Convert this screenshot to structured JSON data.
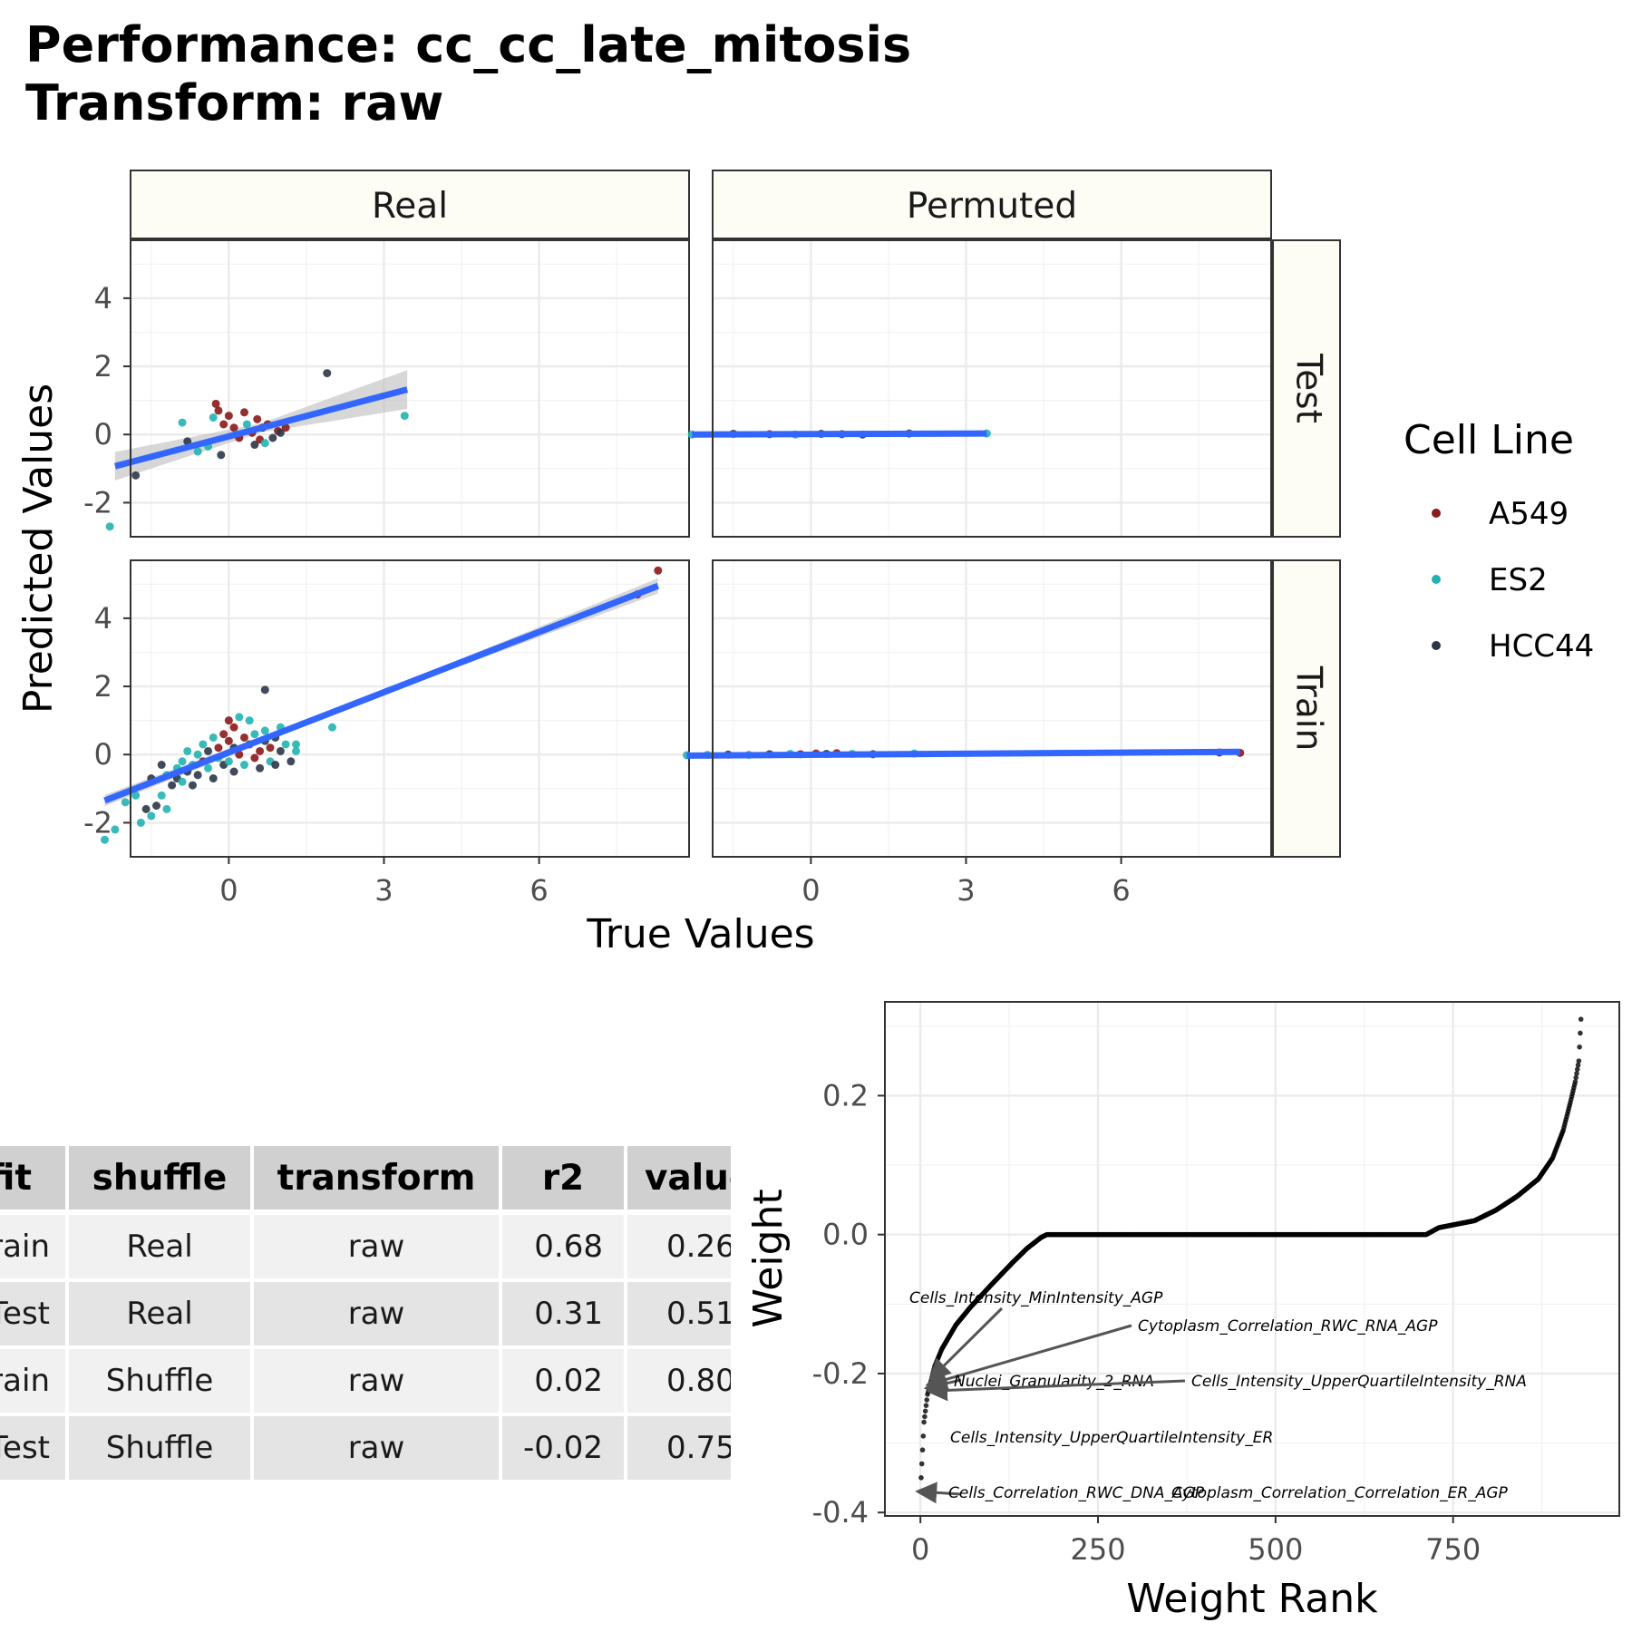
{
  "title": {
    "line1": "Performance: cc_cc_late_mitosis",
    "line2": "Transform: raw"
  },
  "colors": {
    "A549": "#8b1a1a",
    "ES2": "#22b2b2",
    "HCC44": "#2d3648",
    "fit_line": "#3366ff",
    "ribbon": "#bdbdbd",
    "strip_bg": "#fdfdf5"
  },
  "chart_data": [
    {
      "type": "scatter",
      "facets": {
        "columns": [
          "Real",
          "Permuted"
        ],
        "rows": [
          "Test",
          "Train"
        ]
      },
      "xlabel": "True Values",
      "ylabel": "Predicted Values",
      "xlim": [
        -1.9,
        8.9
      ],
      "ylim": [
        -3.0,
        5.7
      ],
      "xticks": [
        0,
        3,
        6
      ],
      "yticks": [
        -2,
        0,
        2,
        4
      ],
      "grid": true,
      "legend": {
        "title": "Cell Line",
        "position": "right",
        "entries": [
          "A549",
          "ES2",
          "HCC44"
        ]
      },
      "panels": [
        {
          "column": "Real",
          "row": "Test",
          "fit": {
            "x0": -2.2,
            "y0": -0.93,
            "x1": 3.45,
            "y1": 1.32
          },
          "points": [
            {
              "x": -2.3,
              "y": -2.7,
              "cell": "ES2"
            },
            {
              "x": -1.8,
              "y": -1.2,
              "cell": "HCC44"
            },
            {
              "x": -0.9,
              "y": 0.35,
              "cell": "ES2"
            },
            {
              "x": -0.8,
              "y": -0.2,
              "cell": "HCC44"
            },
            {
              "x": -0.6,
              "y": -0.5,
              "cell": "ES2"
            },
            {
              "x": -0.4,
              "y": -0.35,
              "cell": "ES2"
            },
            {
              "x": -0.3,
              "y": 0.5,
              "cell": "ES2"
            },
            {
              "x": -0.25,
              "y": 0.9,
              "cell": "A549"
            },
            {
              "x": -0.2,
              "y": 0.7,
              "cell": "A549"
            },
            {
              "x": -0.15,
              "y": -0.6,
              "cell": "HCC44"
            },
            {
              "x": -0.1,
              "y": 0.3,
              "cell": "A549"
            },
            {
              "x": 0.0,
              "y": 0.55,
              "cell": "A549"
            },
            {
              "x": 0.1,
              "y": 0.2,
              "cell": "A549"
            },
            {
              "x": 0.15,
              "y": 0.0,
              "cell": "ES2"
            },
            {
              "x": 0.2,
              "y": -0.1,
              "cell": "A549"
            },
            {
              "x": 0.3,
              "y": 0.65,
              "cell": "A549"
            },
            {
              "x": 0.35,
              "y": 0.3,
              "cell": "ES2"
            },
            {
              "x": 0.45,
              "y": 0.05,
              "cell": "A549"
            },
            {
              "x": 0.5,
              "y": -0.3,
              "cell": "HCC44"
            },
            {
              "x": 0.55,
              "y": 0.45,
              "cell": "A549"
            },
            {
              "x": 0.6,
              "y": -0.15,
              "cell": "A549"
            },
            {
              "x": 0.65,
              "y": 0.2,
              "cell": "HCC44"
            },
            {
              "x": 0.7,
              "y": -0.25,
              "cell": "ES2"
            },
            {
              "x": 0.75,
              "y": 0.3,
              "cell": "A549"
            },
            {
              "x": 0.85,
              "y": -0.1,
              "cell": "HCC44"
            },
            {
              "x": 0.95,
              "y": 0.1,
              "cell": "A549"
            },
            {
              "x": 1.0,
              "y": 0.05,
              "cell": "HCC44"
            },
            {
              "x": 1.1,
              "y": 0.2,
              "cell": "A549"
            },
            {
              "x": 1.9,
              "y": 1.8,
              "cell": "HCC44"
            },
            {
              "x": 3.4,
              "y": 0.55,
              "cell": "ES2"
            }
          ]
        },
        {
          "column": "Permuted",
          "row": "Test",
          "fit": {
            "x0": -2.3,
            "y0": 0.0,
            "x1": 3.4,
            "y1": 0.03
          },
          "points": [
            {
              "x": -2.3,
              "y": 0.0,
              "cell": "ES2"
            },
            {
              "x": -1.5,
              "y": 0.02,
              "cell": "HCC44"
            },
            {
              "x": -0.8,
              "y": 0.01,
              "cell": "A549"
            },
            {
              "x": -0.3,
              "y": 0.0,
              "cell": "ES2"
            },
            {
              "x": 0.2,
              "y": 0.02,
              "cell": "HCC44"
            },
            {
              "x": 0.6,
              "y": 0.01,
              "cell": "A549"
            },
            {
              "x": 1.0,
              "y": 0.0,
              "cell": "HCC44"
            },
            {
              "x": 1.9,
              "y": 0.03,
              "cell": "HCC44"
            },
            {
              "x": 3.4,
              "y": 0.03,
              "cell": "ES2"
            }
          ]
        },
        {
          "column": "Real",
          "row": "Train",
          "fit": {
            "x0": -2.4,
            "y0": -1.35,
            "x1": 8.3,
            "y1": 4.95
          },
          "points": [
            {
              "x": -2.4,
              "y": -2.5,
              "cell": "ES2"
            },
            {
              "x": -2.2,
              "y": -2.2,
              "cell": "ES2"
            },
            {
              "x": -2.0,
              "y": -1.4,
              "cell": "ES2"
            },
            {
              "x": -1.8,
              "y": -1.2,
              "cell": "ES2"
            },
            {
              "x": -1.7,
              "y": -2.0,
              "cell": "ES2"
            },
            {
              "x": -1.6,
              "y": -1.6,
              "cell": "HCC44"
            },
            {
              "x": -1.5,
              "y": -1.8,
              "cell": "ES2"
            },
            {
              "x": -1.5,
              "y": -0.7,
              "cell": "HCC44"
            },
            {
              "x": -1.4,
              "y": -1.5,
              "cell": "HCC44"
            },
            {
              "x": -1.3,
              "y": -1.2,
              "cell": "ES2"
            },
            {
              "x": -1.3,
              "y": -0.3,
              "cell": "HCC44"
            },
            {
              "x": -1.2,
              "y": -0.6,
              "cell": "ES2"
            },
            {
              "x": -1.2,
              "y": -1.6,
              "cell": "ES2"
            },
            {
              "x": -1.1,
              "y": -0.9,
              "cell": "HCC44"
            },
            {
              "x": -1.0,
              "y": -0.4,
              "cell": "ES2"
            },
            {
              "x": -1.0,
              "y": -0.7,
              "cell": "HCC44"
            },
            {
              "x": -0.9,
              "y": -0.2,
              "cell": "ES2"
            },
            {
              "x": -0.9,
              "y": -0.8,
              "cell": "ES2"
            },
            {
              "x": -0.8,
              "y": -0.5,
              "cell": "HCC44"
            },
            {
              "x": -0.8,
              "y": 0.1,
              "cell": "ES2"
            },
            {
              "x": -0.7,
              "y": -0.3,
              "cell": "ES2"
            },
            {
              "x": -0.7,
              "y": -0.9,
              "cell": "HCC44"
            },
            {
              "x": -0.6,
              "y": 0.0,
              "cell": "ES2"
            },
            {
              "x": -0.6,
              "y": -0.6,
              "cell": "HCC44"
            },
            {
              "x": -0.5,
              "y": -0.2,
              "cell": "A549"
            },
            {
              "x": -0.5,
              "y": 0.3,
              "cell": "ES2"
            },
            {
              "x": -0.4,
              "y": -0.4,
              "cell": "ES2"
            },
            {
              "x": -0.4,
              "y": 0.1,
              "cell": "HCC44"
            },
            {
              "x": -0.3,
              "y": -0.7,
              "cell": "HCC44"
            },
            {
              "x": -0.3,
              "y": 0.5,
              "cell": "ES2"
            },
            {
              "x": -0.2,
              "y": 0.2,
              "cell": "A549"
            },
            {
              "x": -0.2,
              "y": -0.1,
              "cell": "ES2"
            },
            {
              "x": -0.1,
              "y": 0.6,
              "cell": "A549"
            },
            {
              "x": -0.1,
              "y": -0.3,
              "cell": "HCC44"
            },
            {
              "x": 0.0,
              "y": 1.0,
              "cell": "A549"
            },
            {
              "x": 0.0,
              "y": 0.4,
              "cell": "A549"
            },
            {
              "x": 0.0,
              "y": -0.2,
              "cell": "ES2"
            },
            {
              "x": 0.1,
              "y": 0.2,
              "cell": "HCC44"
            },
            {
              "x": 0.1,
              "y": 0.8,
              "cell": "A549"
            },
            {
              "x": 0.1,
              "y": -0.5,
              "cell": "HCC44"
            },
            {
              "x": 0.2,
              "y": 1.1,
              "cell": "ES2"
            },
            {
              "x": 0.2,
              "y": 0.0,
              "cell": "A549"
            },
            {
              "x": 0.3,
              "y": 0.5,
              "cell": "A549"
            },
            {
              "x": 0.3,
              "y": -0.3,
              "cell": "ES2"
            },
            {
              "x": 0.4,
              "y": 0.3,
              "cell": "HCC44"
            },
            {
              "x": 0.4,
              "y": 1.0,
              "cell": "ES2"
            },
            {
              "x": 0.5,
              "y": -0.1,
              "cell": "A549"
            },
            {
              "x": 0.5,
              "y": 0.6,
              "cell": "ES2"
            },
            {
              "x": 0.6,
              "y": 0.1,
              "cell": "A549"
            },
            {
              "x": 0.6,
              "y": -0.4,
              "cell": "HCC44"
            },
            {
              "x": 0.7,
              "y": 0.4,
              "cell": "HCC44"
            },
            {
              "x": 0.7,
              "y": 1.9,
              "cell": "HCC44"
            },
            {
              "x": 0.7,
              "y": 0.7,
              "cell": "ES2"
            },
            {
              "x": 0.8,
              "y": -0.2,
              "cell": "ES2"
            },
            {
              "x": 0.8,
              "y": 0.2,
              "cell": "A549"
            },
            {
              "x": 0.9,
              "y": 0.5,
              "cell": "HCC44"
            },
            {
              "x": 0.9,
              "y": -0.3,
              "cell": "HCC44"
            },
            {
              "x": 1.0,
              "y": 0.8,
              "cell": "ES2"
            },
            {
              "x": 1.0,
              "y": 0.1,
              "cell": "HCC44"
            },
            {
              "x": 1.1,
              "y": 0.3,
              "cell": "ES2"
            },
            {
              "x": 1.2,
              "y": -0.2,
              "cell": "HCC44"
            },
            {
              "x": 1.3,
              "y": 0.3,
              "cell": "ES2"
            },
            {
              "x": 1.3,
              "y": 0.1,
              "cell": "ES2"
            },
            {
              "x": 2.0,
              "y": 0.8,
              "cell": "ES2"
            },
            {
              "x": 7.9,
              "y": 4.7,
              "cell": "A549"
            },
            {
              "x": 8.3,
              "y": 5.4,
              "cell": "A549"
            }
          ]
        },
        {
          "column": "Permuted",
          "row": "Train",
          "fit": {
            "x0": -2.4,
            "y0": -0.03,
            "x1": 8.3,
            "y1": 0.08
          },
          "points": [
            {
              "x": -2.4,
              "y": -0.02,
              "cell": "ES2"
            },
            {
              "x": -2.0,
              "y": -0.01,
              "cell": "ES2"
            },
            {
              "x": -1.6,
              "y": 0.0,
              "cell": "HCC44"
            },
            {
              "x": -1.2,
              "y": -0.01,
              "cell": "ES2"
            },
            {
              "x": -0.8,
              "y": 0.01,
              "cell": "HCC44"
            },
            {
              "x": -0.4,
              "y": 0.02,
              "cell": "ES2"
            },
            {
              "x": -0.2,
              "y": 0.01,
              "cell": "A549"
            },
            {
              "x": 0.1,
              "y": 0.03,
              "cell": "A549"
            },
            {
              "x": 0.3,
              "y": 0.02,
              "cell": "HCC44"
            },
            {
              "x": 0.5,
              "y": 0.04,
              "cell": "A549"
            },
            {
              "x": 0.8,
              "y": 0.02,
              "cell": "ES2"
            },
            {
              "x": 1.2,
              "y": 0.01,
              "cell": "HCC44"
            },
            {
              "x": 2.0,
              "y": 0.03,
              "cell": "ES2"
            },
            {
              "x": 7.9,
              "y": 0.06,
              "cell": "A549"
            },
            {
              "x": 8.3,
              "y": 0.05,
              "cell": "A549"
            }
          ]
        }
      ]
    },
    {
      "type": "table",
      "columns": [
        "fit",
        "shuffle",
        "transform",
        "r2",
        "value"
      ],
      "rows": [
        [
          "Train",
          "Real",
          "raw",
          "0.68",
          "0.26"
        ],
        [
          "Test",
          "Real",
          "raw",
          "0.31",
          "0.51"
        ],
        [
          "Train",
          "Shuffle",
          "raw",
          "0.02",
          "0.80"
        ],
        [
          "Test",
          "Shuffle",
          "raw",
          "-0.02",
          "0.75"
        ]
      ]
    },
    {
      "type": "scatter",
      "xlabel": "Weight Rank",
      "ylabel": "Weight",
      "xlim": [
        -50,
        984
      ],
      "ylim": [
        -0.405,
        0.335
      ],
      "xticks": [
        0,
        250,
        500,
        750
      ],
      "yticks": [
        -0.4,
        -0.2,
        0.0,
        0.2
      ],
      "ytick_labels": [
        "-0.4",
        "-0.2",
        "0.0",
        "0.2"
      ],
      "grid": true,
      "n_points": 931,
      "curve": [
        [
          0,
          -0.37
        ],
        [
          2,
          -0.33
        ],
        [
          5,
          -0.27
        ],
        [
          10,
          -0.23
        ],
        [
          20,
          -0.19
        ],
        [
          30,
          -0.165
        ],
        [
          50,
          -0.13
        ],
        [
          70,
          -0.105
        ],
        [
          100,
          -0.072
        ],
        [
          130,
          -0.04
        ],
        [
          150,
          -0.02
        ],
        [
          160,
          -0.012
        ],
        [
          170,
          -0.004
        ],
        [
          178,
          0.0
        ],
        [
          300,
          0.0
        ],
        [
          500,
          0.0
        ],
        [
          712,
          0.0
        ],
        [
          730,
          0.01
        ],
        [
          780,
          0.02
        ],
        [
          810,
          0.035
        ],
        [
          840,
          0.055
        ],
        [
          870,
          0.08
        ],
        [
          890,
          0.11
        ],
        [
          905,
          0.15
        ],
        [
          915,
          0.19
        ],
        [
          922,
          0.22
        ],
        [
          927,
          0.25
        ],
        [
          929,
          0.29
        ],
        [
          930,
          0.31
        ],
        [
          931,
          0.325
        ]
      ],
      "annotations": [
        {
          "label": "Cells_Intensity_MinIntensity_AGP",
          "x": 17,
          "y": -0.205
        },
        {
          "label": "Cytoplasm_Correlation_RWC_RNA_AGP",
          "x": 14,
          "y": -0.215
        },
        {
          "label": "Nuclei_Granularity_2_RNA",
          "x": 12,
          "y": -0.22
        },
        {
          "label": "Cells_Intensity_UpperQuartileIntensity_RNA",
          "x": 15,
          "y": -0.225
        },
        {
          "label": "Cells_Intensity_UpperQuartileIntensity_ER",
          "x": 2,
          "y": -0.29
        },
        {
          "label": "Cells_Correlation_RWC_DNA_AGP",
          "x": 0,
          "y": -0.37
        },
        {
          "label": "Cytoplasm_Correlation_Correlation_ER_AGP",
          "x": 1,
          "y": -0.37
        }
      ]
    }
  ]
}
